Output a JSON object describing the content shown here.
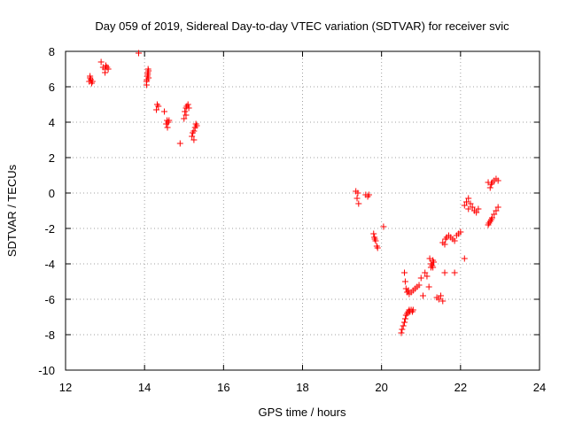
{
  "chart_data": {
    "type": "scatter",
    "title": "Day 059 of 2019, Sidereal Day-to-day VTEC variation (SDTVAR) for receiver svic",
    "xlabel": "GPS time / hours",
    "ylabel": "SDTVAR / TECUs",
    "xlim": [
      12,
      24
    ],
    "ylim": [
      -10,
      8
    ],
    "xticks": [
      12,
      14,
      16,
      18,
      20,
      22,
      24
    ],
    "yticks": [
      -10,
      -8,
      -6,
      -4,
      -2,
      0,
      2,
      4,
      6,
      8
    ],
    "grid": true,
    "marker": "+",
    "series": [
      {
        "name": "SDTVAR",
        "color": "#ff0000",
        "x": [
          12.6,
          12.62,
          12.64,
          12.66,
          12.68,
          12.62,
          12.9,
          12.95,
          13.0,
          13.02,
          13.05,
          13.08,
          13.0,
          13.85,
          14.05,
          14.06,
          14.07,
          14.08,
          14.09,
          14.1,
          14.05,
          14.08,
          14.1,
          14.3,
          14.32,
          14.35,
          14.5,
          14.55,
          14.57,
          14.6,
          14.62,
          14.58,
          14.9,
          15.0,
          15.02,
          15.05,
          15.07,
          15.1,
          15.12,
          15.05,
          15.2,
          15.22,
          15.25,
          15.28,
          15.3,
          15.32,
          15.25,
          19.35,
          19.4,
          19.42,
          19.38,
          19.6,
          19.65,
          19.68,
          19.8,
          19.82,
          19.85,
          19.88,
          19.9,
          19.83,
          20.05,
          20.5,
          20.52,
          20.55,
          20.58,
          20.6,
          20.62,
          20.65,
          20.68,
          20.7,
          20.72,
          20.75,
          20.78,
          20.8,
          20.58,
          20.6,
          20.62,
          20.65,
          20.68,
          20.7,
          20.75,
          20.8,
          20.85,
          20.9,
          20.95,
          21.0,
          21.05,
          21.1,
          21.15,
          21.2,
          21.25,
          21.3,
          21.22,
          21.25,
          21.28,
          21.3,
          21.32,
          21.4,
          21.45,
          21.5,
          21.55,
          21.6,
          21.55,
          21.6,
          21.62,
          21.65,
          21.7,
          21.75,
          21.8,
          21.85,
          21.9,
          21.95,
          22.0,
          21.85,
          22.1,
          22.15,
          22.2,
          22.25,
          22.3,
          22.35,
          22.4,
          22.45,
          22.2,
          22.7,
          22.72,
          22.75,
          22.78,
          22.8,
          22.85,
          22.9,
          22.95,
          22.75,
          22.78,
          22.8,
          22.85,
          22.9,
          22.95,
          22.7,
          22.1
        ],
        "y": [
          6.3,
          6.5,
          6.4,
          6.2,
          6.3,
          6.6,
          7.4,
          7.1,
          7.0,
          7.2,
          7.1,
          7.0,
          6.8,
          7.9,
          6.1,
          6.4,
          6.6,
          6.8,
          7.0,
          6.9,
          6.3,
          6.7,
          6.5,
          4.7,
          5.0,
          4.9,
          4.6,
          3.9,
          4.1,
          4.0,
          4.1,
          3.7,
          2.8,
          4.2,
          4.6,
          4.8,
          4.9,
          5.0,
          4.8,
          4.4,
          3.2,
          3.4,
          3.5,
          3.7,
          3.9,
          3.8,
          3.0,
          0.1,
          0.0,
          -0.6,
          -0.3,
          -0.1,
          -0.2,
          -0.1,
          -2.3,
          -2.5,
          -2.7,
          -3.0,
          -3.1,
          -2.6,
          -1.9,
          -7.9,
          -7.7,
          -7.5,
          -7.3,
          -7.1,
          -6.9,
          -6.8,
          -6.7,
          -6.6,
          -6.7,
          -6.6,
          -6.7,
          -6.6,
          -4.5,
          -5.0,
          -5.4,
          -5.6,
          -5.5,
          -5.7,
          -5.6,
          -5.5,
          -5.4,
          -5.3,
          -5.2,
          -4.8,
          -5.8,
          -4.5,
          -4.7,
          -5.3,
          -4.2,
          -3.8,
          -3.7,
          -4.0,
          -4.1,
          -4.2,
          -3.9,
          -5.9,
          -6.0,
          -5.8,
          -6.1,
          -4.5,
          -2.8,
          -2.9,
          -2.6,
          -2.5,
          -2.4,
          -2.5,
          -2.6,
          -2.7,
          -2.4,
          -2.3,
          -2.2,
          -4.5,
          -0.7,
          -0.5,
          -0.9,
          -0.6,
          -0.8,
          -1.0,
          -1.1,
          -0.9,
          -0.3,
          -1.8,
          -1.7,
          -1.6,
          -1.5,
          -1.4,
          -1.2,
          -1.0,
          -0.8,
          0.3,
          0.5,
          0.6,
          0.7,
          0.8,
          0.7,
          0.6,
          -3.7
        ]
      }
    ]
  }
}
